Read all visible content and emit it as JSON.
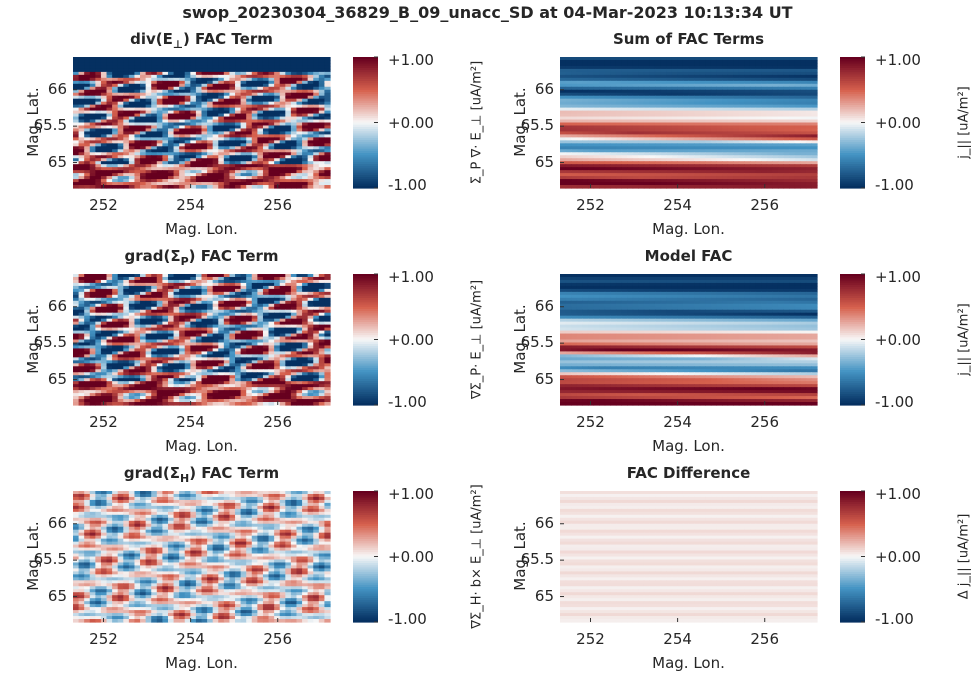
{
  "figure_title": "swop_20230304_36829_B_09_unacc_SD at 04-Mar-2023 10:13:34 UT",
  "chart_data": [
    {
      "type": "heatmap",
      "title_main": "div(E",
      "title_sub": "⊥",
      "title_rest": ") FAC Term",
      "xlabel": "Mag. Lon.",
      "ylabel": "Mag. Lat.",
      "x_ticks": [
        "252",
        "254",
        "256"
      ],
      "y_ticks": [
        "66",
        "65.5",
        "65"
      ],
      "xlim": [
        251.3,
        257.2
      ],
      "ylim": [
        64.65,
        66.45
      ],
      "colorbar_ticks": [
        "+1.00",
        "+0.00",
        "-1.00"
      ],
      "clim": [
        -1,
        1
      ],
      "colorbar_label": "Σ_P ∇· E_⊥ [uA/m²]",
      "pattern": "noisy"
    },
    {
      "type": "heatmap",
      "title_main": "Sum of FAC Terms",
      "title_sub": "",
      "title_rest": "",
      "xlabel": "Mag. Lon.",
      "ylabel": "Mag. Lat.",
      "x_ticks": [
        "252",
        "254",
        "256"
      ],
      "y_ticks": [
        "66",
        "65.5",
        "65"
      ],
      "xlim": [
        251.3,
        257.2
      ],
      "ylim": [
        64.65,
        66.45
      ],
      "colorbar_ticks": [
        "+1.00",
        "+0.00",
        "-1.00"
      ],
      "clim": [
        -1,
        1
      ],
      "colorbar_label": "j_|| [uA/m²]",
      "pattern": "bands"
    },
    {
      "type": "heatmap",
      "title_main": "grad(Σ",
      "title_sub": "P",
      "title_rest": ") FAC Term",
      "xlabel": "Mag. Lon.",
      "ylabel": "Mag. Lat.",
      "x_ticks": [
        "252",
        "254",
        "256"
      ],
      "y_ticks": [
        "66",
        "65.5",
        "65"
      ],
      "xlim": [
        251.3,
        257.2
      ],
      "ylim": [
        64.65,
        66.45
      ],
      "colorbar_ticks": [
        "+1.00",
        "+0.00",
        "-1.00"
      ],
      "clim": [
        -1,
        1
      ],
      "colorbar_label": "∇Σ_P· E_⊥ [uA/m²]",
      "pattern": "noisy"
    },
    {
      "type": "heatmap",
      "title_main": "Model FAC",
      "title_sub": "",
      "title_rest": "",
      "xlabel": "Mag. Lon.",
      "ylabel": "Mag. Lat.",
      "x_ticks": [
        "252",
        "254",
        "256"
      ],
      "y_ticks": [
        "66",
        "65.5",
        "65"
      ],
      "xlim": [
        251.3,
        257.2
      ],
      "ylim": [
        64.65,
        66.45
      ],
      "colorbar_ticks": [
        "+1.00",
        "+0.00",
        "-1.00"
      ],
      "clim": [
        -1,
        1
      ],
      "colorbar_label": "j_|| [uA/m²]",
      "pattern": "bands"
    },
    {
      "type": "heatmap",
      "title_main": "grad(Σ",
      "title_sub": "H",
      "title_rest": ") FAC Term",
      "xlabel": "Mag. Lon.",
      "ylabel": "Mag. Lat.",
      "x_ticks": [
        "252",
        "254",
        "256"
      ],
      "y_ticks": [
        "66",
        "65.5",
        "65"
      ],
      "xlim": [
        251.3,
        257.2
      ],
      "ylim": [
        64.65,
        66.45
      ],
      "colorbar_ticks": [
        "+1.00",
        "+0.00",
        "-1.00"
      ],
      "clim": [
        -1,
        1
      ],
      "colorbar_label": "∇Σ_H· b× E_⊥ [uA/m²]",
      "pattern": "weak-noisy"
    },
    {
      "type": "heatmap",
      "title_main": "FAC Difference",
      "title_sub": "",
      "title_rest": "",
      "xlabel": "Mag. Lon.",
      "ylabel": "Mag. Lat.",
      "x_ticks": [
        "252",
        "254",
        "256"
      ],
      "y_ticks": [
        "66",
        "65.5",
        "65"
      ],
      "xlim": [
        251.3,
        257.2
      ],
      "ylim": [
        64.65,
        66.45
      ],
      "colorbar_ticks": [
        "+1.00",
        "+0.00",
        "-1.00"
      ],
      "clim": [
        -1,
        1
      ],
      "colorbar_label": "Δ j_|| [uA/m²]",
      "pattern": "near-zero"
    }
  ],
  "colors": {
    "dark_red": "#67001f",
    "red": "#d6604d",
    "white": "#f7f7f7",
    "blue": "#4393c3",
    "dark_blue": "#053061"
  }
}
